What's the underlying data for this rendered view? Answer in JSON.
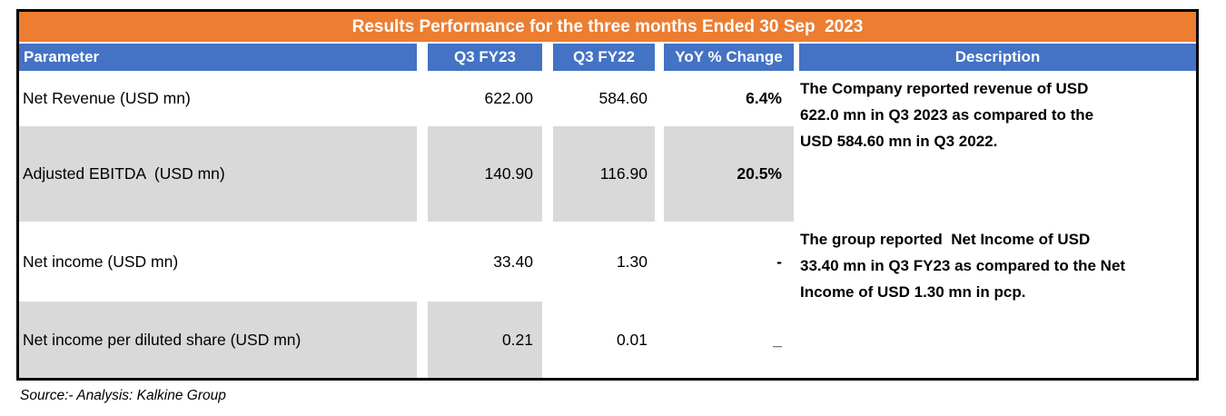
{
  "title": "Results Performance for the three months Ended 30 Sep  2023",
  "columns": [
    "Parameter",
    "Q3 FY23",
    "Q3 FY22",
    "YoY % Change",
    "Description"
  ],
  "rows": [
    {
      "parameter": "Net Revenue (USD mn)",
      "q3_fy23": "622.00",
      "q3_fy22": "584.60",
      "yoy_change": "6.4%"
    },
    {
      "parameter": "Adjusted EBITDA  (USD mn)",
      "q3_fy23": "140.90",
      "q3_fy22": "116.90",
      "yoy_change": "20.5%"
    },
    {
      "parameter": "Net income (USD mn)",
      "q3_fy23": "33.40",
      "q3_fy22": "1.30",
      "yoy_change": "-"
    },
    {
      "parameter": "Net income per diluted share (USD mn)",
      "q3_fy23": "0.21",
      "q3_fy22": "0.01",
      "yoy_change": "_"
    }
  ],
  "descriptions": [
    "The Company reported revenue of USD\n622.0 mn in Q3 2023 as compared to the\nUSD 584.60 mn in Q3 2022.",
    "The group reported  Net Income of USD\n33.40 mn in Q3 FY23 as compared to the Net\nIncome of USD 1.30 mn in pcp."
  ],
  "source": "Source:- Analysis: Kalkine Group",
  "colors": {
    "title_bar_orange": "#ED7D31",
    "header_blue": "#4472C4",
    "row_shaded_gray": "#D9D9D9",
    "border_black": "#000000",
    "header_text_white": "#FFFFFF"
  }
}
